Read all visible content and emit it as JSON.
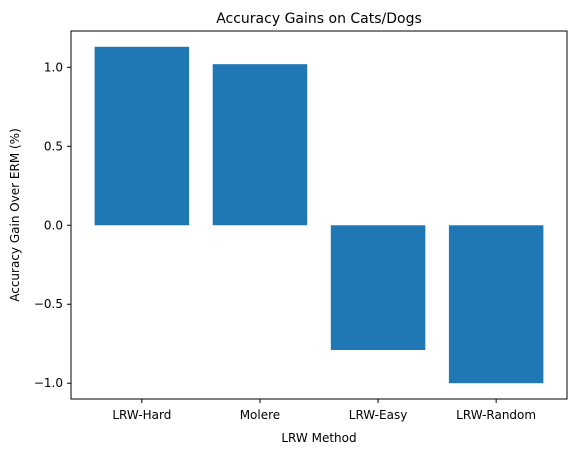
{
  "chart_data": {
    "type": "bar",
    "title": "Accuracy Gains on Cats/Dogs",
    "xlabel": "LRW Method",
    "ylabel": "Accuracy Gain Over ERM (%)",
    "categories": [
      "LRW-Hard",
      "Molere",
      "LRW-Easy",
      "LRW-Random"
    ],
    "values": [
      1.13,
      1.02,
      -0.79,
      -1.0
    ],
    "ylim": [
      -1.1,
      1.23
    ],
    "yticks": [
      -1.0,
      -0.5,
      0.0,
      0.5,
      1.0
    ],
    "ytick_labels": [
      "−1.0",
      "−0.5",
      "0.0",
      "0.5",
      "1.0"
    ],
    "bar_color": "#1f77b4",
    "grid": false,
    "legend": "none"
  }
}
